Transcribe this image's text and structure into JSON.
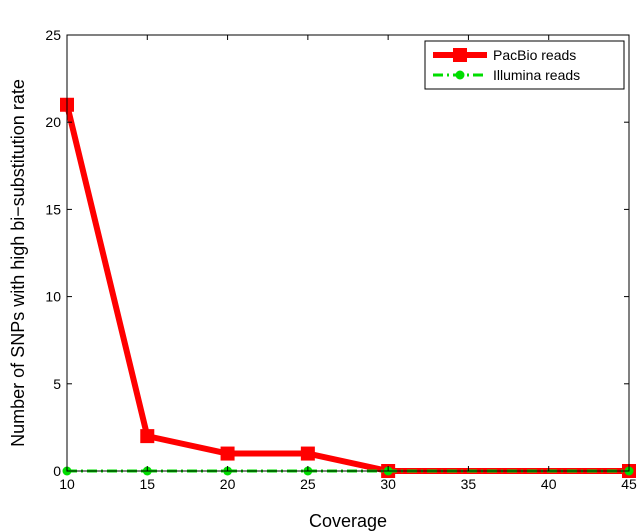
{
  "chart_data": {
    "type": "line",
    "xlabel": "Coverage",
    "ylabel": "Number of SNPs with high bi−substitution rate",
    "xlim": [
      10,
      45
    ],
    "ylim": [
      0,
      25
    ],
    "x_ticks": [
      "10",
      "15",
      "20",
      "25",
      "30",
      "35",
      "40",
      "45"
    ],
    "y_ticks": [
      "0",
      "5",
      "10",
      "15",
      "20",
      "25"
    ],
    "grid": false,
    "legend_position": "top-right",
    "series": [
      {
        "name": "PacBio reads",
        "color": "#ff0000",
        "line_style": "solid",
        "marker": "square",
        "x": [
          10,
          15,
          20,
          25,
          30,
          45
        ],
        "y": [
          21,
          2,
          1,
          1,
          0,
          0
        ]
      },
      {
        "name": "Illumina reads",
        "color": "#00dd00",
        "line_style": "dash-dot",
        "marker": "circle",
        "x": [
          10,
          15,
          20,
          25,
          30,
          45
        ],
        "y": [
          0,
          0,
          0,
          0,
          0,
          0
        ]
      }
    ]
  }
}
